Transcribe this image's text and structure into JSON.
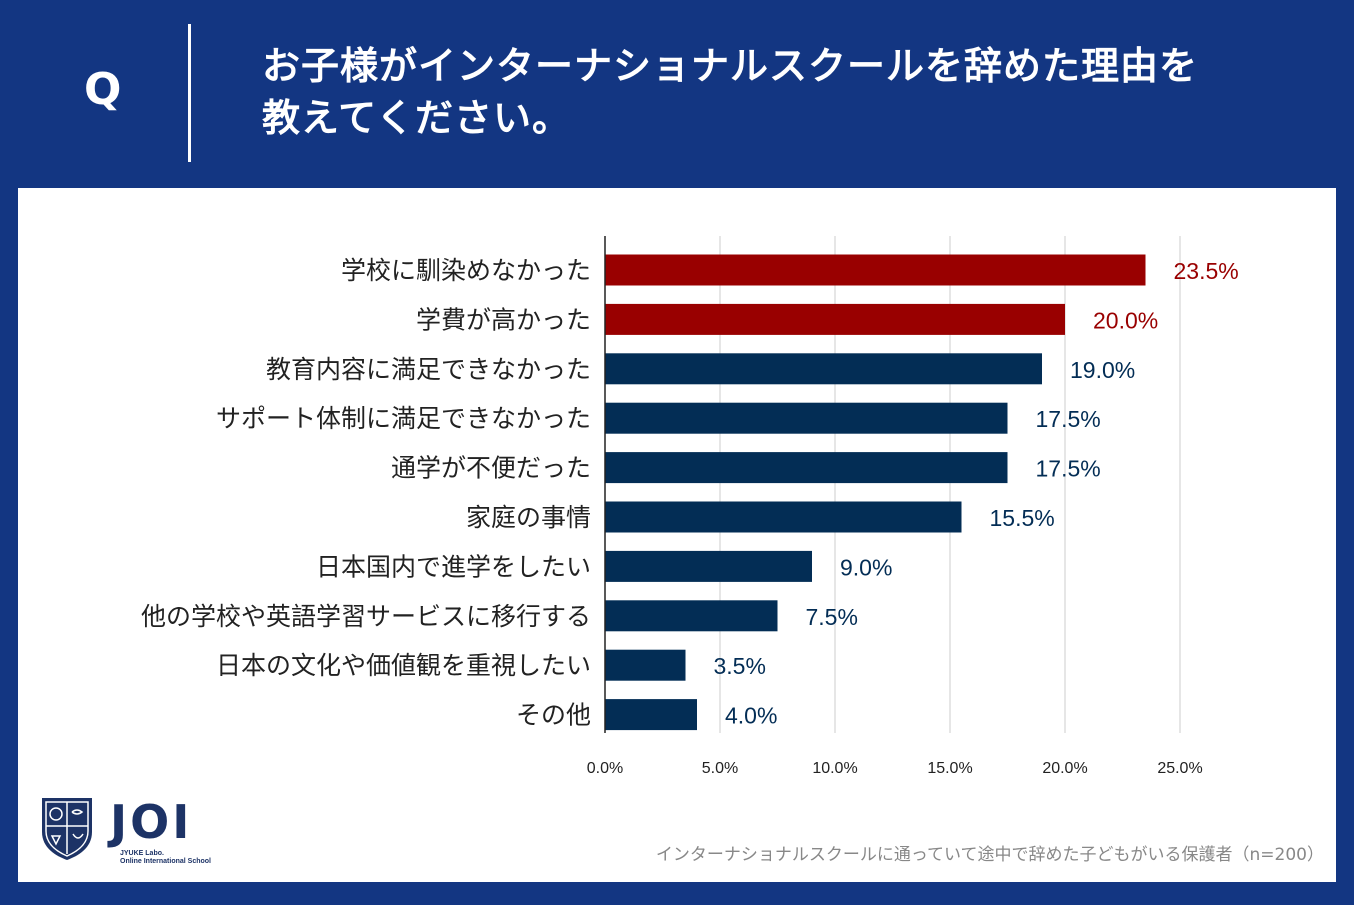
{
  "header": {
    "q_label": "Q",
    "question_line1": "お子様がインターナショナルスクールを辞めた理由を",
    "question_line2": "教えてください。"
  },
  "colors": {
    "background": "#133682",
    "highlight_bar": "#990000",
    "default_bar": "#032d55",
    "grid": "#cccccc"
  },
  "logo": {
    "word": "JOI",
    "sub1": "JYUKE Labo.",
    "sub2": "Online International School",
    "icon": "school-crest-icon"
  },
  "footnote": "インターナショナルスクールに通っていて途中で辞めた子どもがいる保護者（n=200）",
  "chart_data": {
    "type": "bar",
    "orientation": "horizontal",
    "categories": [
      "学校に馴染めなかった",
      "学費が高かった",
      "教育内容に満足できなかった",
      "サポート体制に満足できなかった",
      "通学が不便だった",
      "家庭の事情",
      "日本国内で進学をしたい",
      "他の学校や英語学習サービスに移行する",
      "日本の文化や価値観を重視したい",
      "その他"
    ],
    "values": [
      23.5,
      20.0,
      19.0,
      17.5,
      17.5,
      15.5,
      9.0,
      7.5,
      3.5,
      4.0
    ],
    "value_labels": [
      "23.5%",
      "20.0%",
      "19.0%",
      "17.5%",
      "17.5%",
      "15.5%",
      "9.0%",
      "7.5%",
      "3.5%",
      "4.0%"
    ],
    "highlighted": [
      true,
      true,
      false,
      false,
      false,
      false,
      false,
      false,
      false,
      false
    ],
    "xlim": [
      0,
      25
    ],
    "x_ticks": [
      0,
      5,
      10,
      15,
      20,
      25
    ],
    "x_tick_labels": [
      "0.0%",
      "5.0%",
      "10.0%",
      "15.0%",
      "20.0%",
      "25.0%"
    ],
    "grid": true,
    "title": "",
    "xlabel": "",
    "ylabel": ""
  }
}
